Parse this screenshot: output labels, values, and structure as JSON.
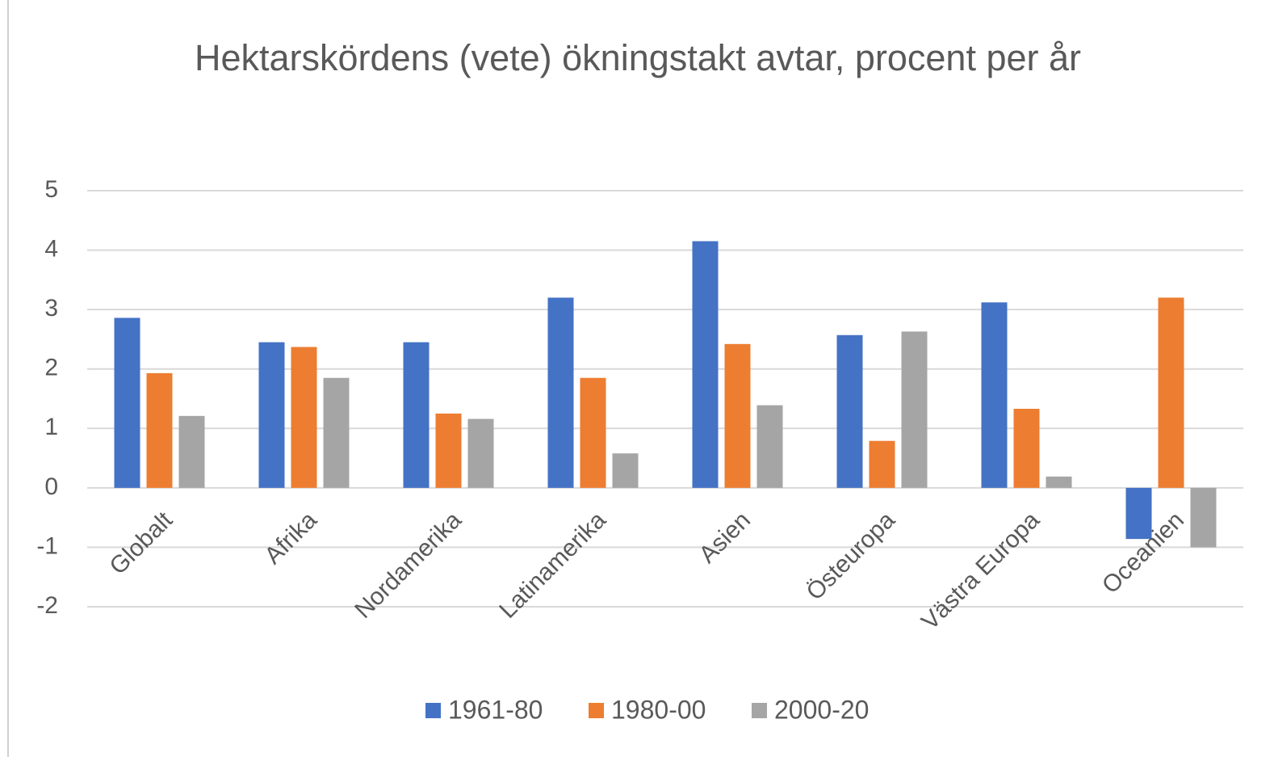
{
  "chart_data": {
    "type": "bar",
    "title": "Hektarskördens (vete) ökningstakt avtar, procent per år",
    "categories": [
      "Globalt",
      "Afrika",
      "Nordamerika",
      "Latinamerika",
      "Asien",
      "Östeuropa",
      "Västra Europa",
      "Oceanien"
    ],
    "series": [
      {
        "name": "1961-80",
        "color": "#4472c4",
        "values": [
          2.86,
          2.45,
          2.45,
          3.2,
          4.15,
          2.57,
          3.12,
          -0.86
        ]
      },
      {
        "name": "1980-00",
        "color": "#ed7d31",
        "values": [
          1.93,
          2.37,
          1.25,
          1.85,
          2.42,
          0.79,
          1.33,
          3.2
        ]
      },
      {
        "name": "2000-20",
        "color": "#a5a5a5",
        "values": [
          1.21,
          1.85,
          1.16,
          0.58,
          1.39,
          2.63,
          0.19,
          -1.0
        ]
      }
    ],
    "ylim": [
      -2,
      5
    ],
    "yticks": [
      -2,
      -1,
      0,
      1,
      2,
      3,
      4,
      5
    ],
    "grid": true,
    "legend": "bottom"
  }
}
